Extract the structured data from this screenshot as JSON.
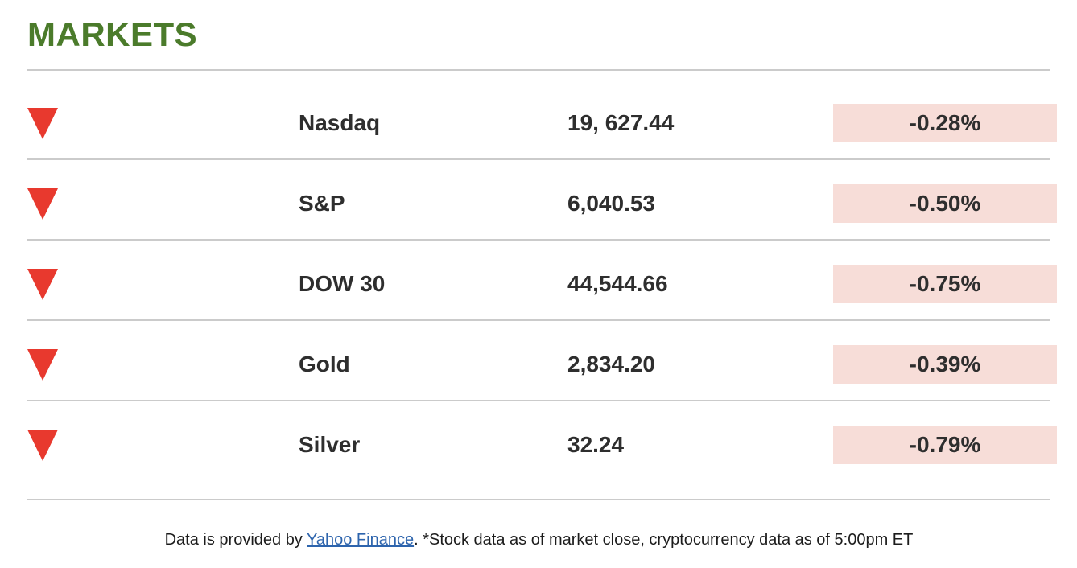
{
  "header": {
    "title": "MARKETS"
  },
  "markets": {
    "rows": [
      {
        "direction": "down",
        "name": "Nasdaq",
        "value": "19, 627.44",
        "change": "-0.28%"
      },
      {
        "direction": "down",
        "name": "S&P",
        "value": "6,040.53",
        "change": "-0.50%"
      },
      {
        "direction": "down",
        "name": "DOW 30",
        "value": "44,544.66",
        "change": "-0.75%"
      },
      {
        "direction": "down",
        "name": "Gold",
        "value": "2,834.20",
        "change": "-0.39%"
      },
      {
        "direction": "down",
        "name": "Silver",
        "value": "32.24",
        "change": "-0.79%"
      }
    ]
  },
  "footer": {
    "prefix": "Data is provided by ",
    "link": "Yahoo Finance",
    "suffix": ". *Stock data as of market close, cryptocurrency data as of 5:00pm ET"
  },
  "icons": {
    "down_indicator": "down-triangle-icon"
  },
  "colors": {
    "accent_green": "#4b7b2b",
    "negative_red": "#e8392e",
    "badge_bg": "#f7ddd8",
    "text_dark": "#2e2e2e",
    "divider_gray": "#cbcbcb",
    "link_blue": "#2d64ad"
  }
}
